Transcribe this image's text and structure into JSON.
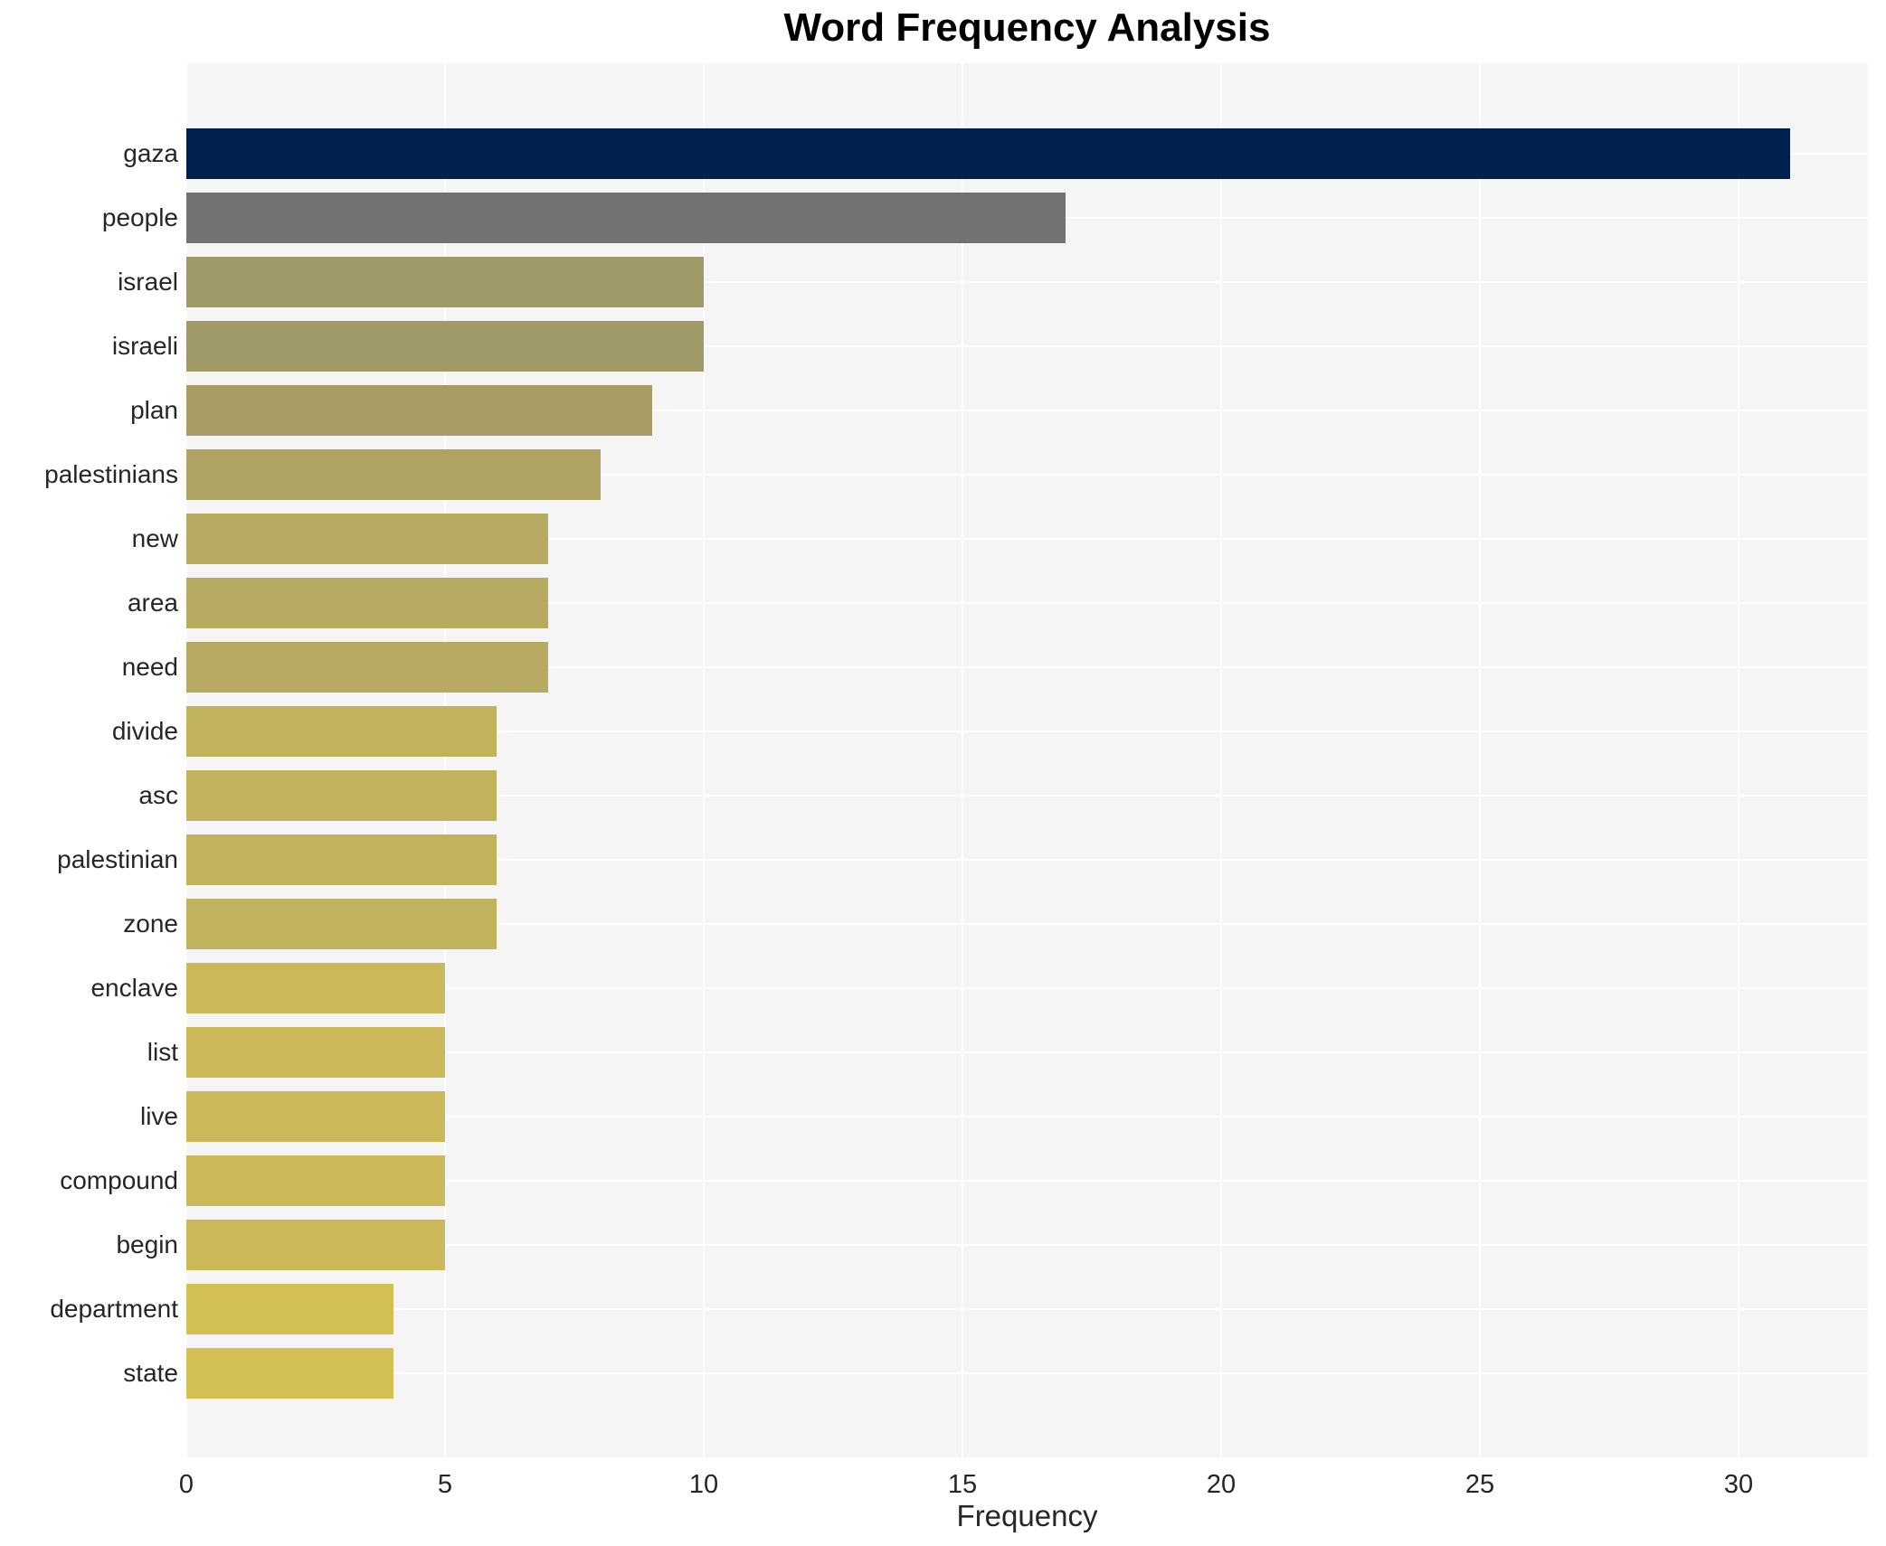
{
  "chart_data": {
    "type": "bar",
    "orientation": "horizontal",
    "title": "Word Frequency Analysis",
    "xlabel": "Frequency",
    "ylabel": "",
    "categories": [
      "gaza",
      "people",
      "israel",
      "israeli",
      "plan",
      "palestinians",
      "new",
      "area",
      "need",
      "divide",
      "asc",
      "palestinian",
      "zone",
      "enclave",
      "list",
      "live",
      "compound",
      "begin",
      "department",
      "state"
    ],
    "values": [
      31,
      17,
      10,
      10,
      9,
      8,
      7,
      7,
      7,
      6,
      6,
      6,
      6,
      5,
      5,
      5,
      5,
      5,
      4,
      4
    ],
    "bar_colors": [
      "#00214e",
      "#727272",
      "#a09968",
      "#a09968",
      "#a89d66",
      "#afa363",
      "#b7aa61",
      "#b7aa61",
      "#b7aa61",
      "#c1b25d",
      "#c1b25d",
      "#c1b25d",
      "#c1b25d",
      "#cbb959",
      "#cbb959",
      "#cbb959",
      "#cbb959",
      "#cbb959",
      "#d3c055",
      "#d3c055"
    ],
    "xticks": [
      0,
      5,
      10,
      15,
      20,
      25,
      30
    ],
    "xlim": [
      0,
      32.5
    ],
    "grid": true,
    "legend": false,
    "plot_background": "#f5f5f6",
    "grid_color": "#ffffff",
    "title_color": "#000000",
    "tick_label_color": "#262626"
  }
}
